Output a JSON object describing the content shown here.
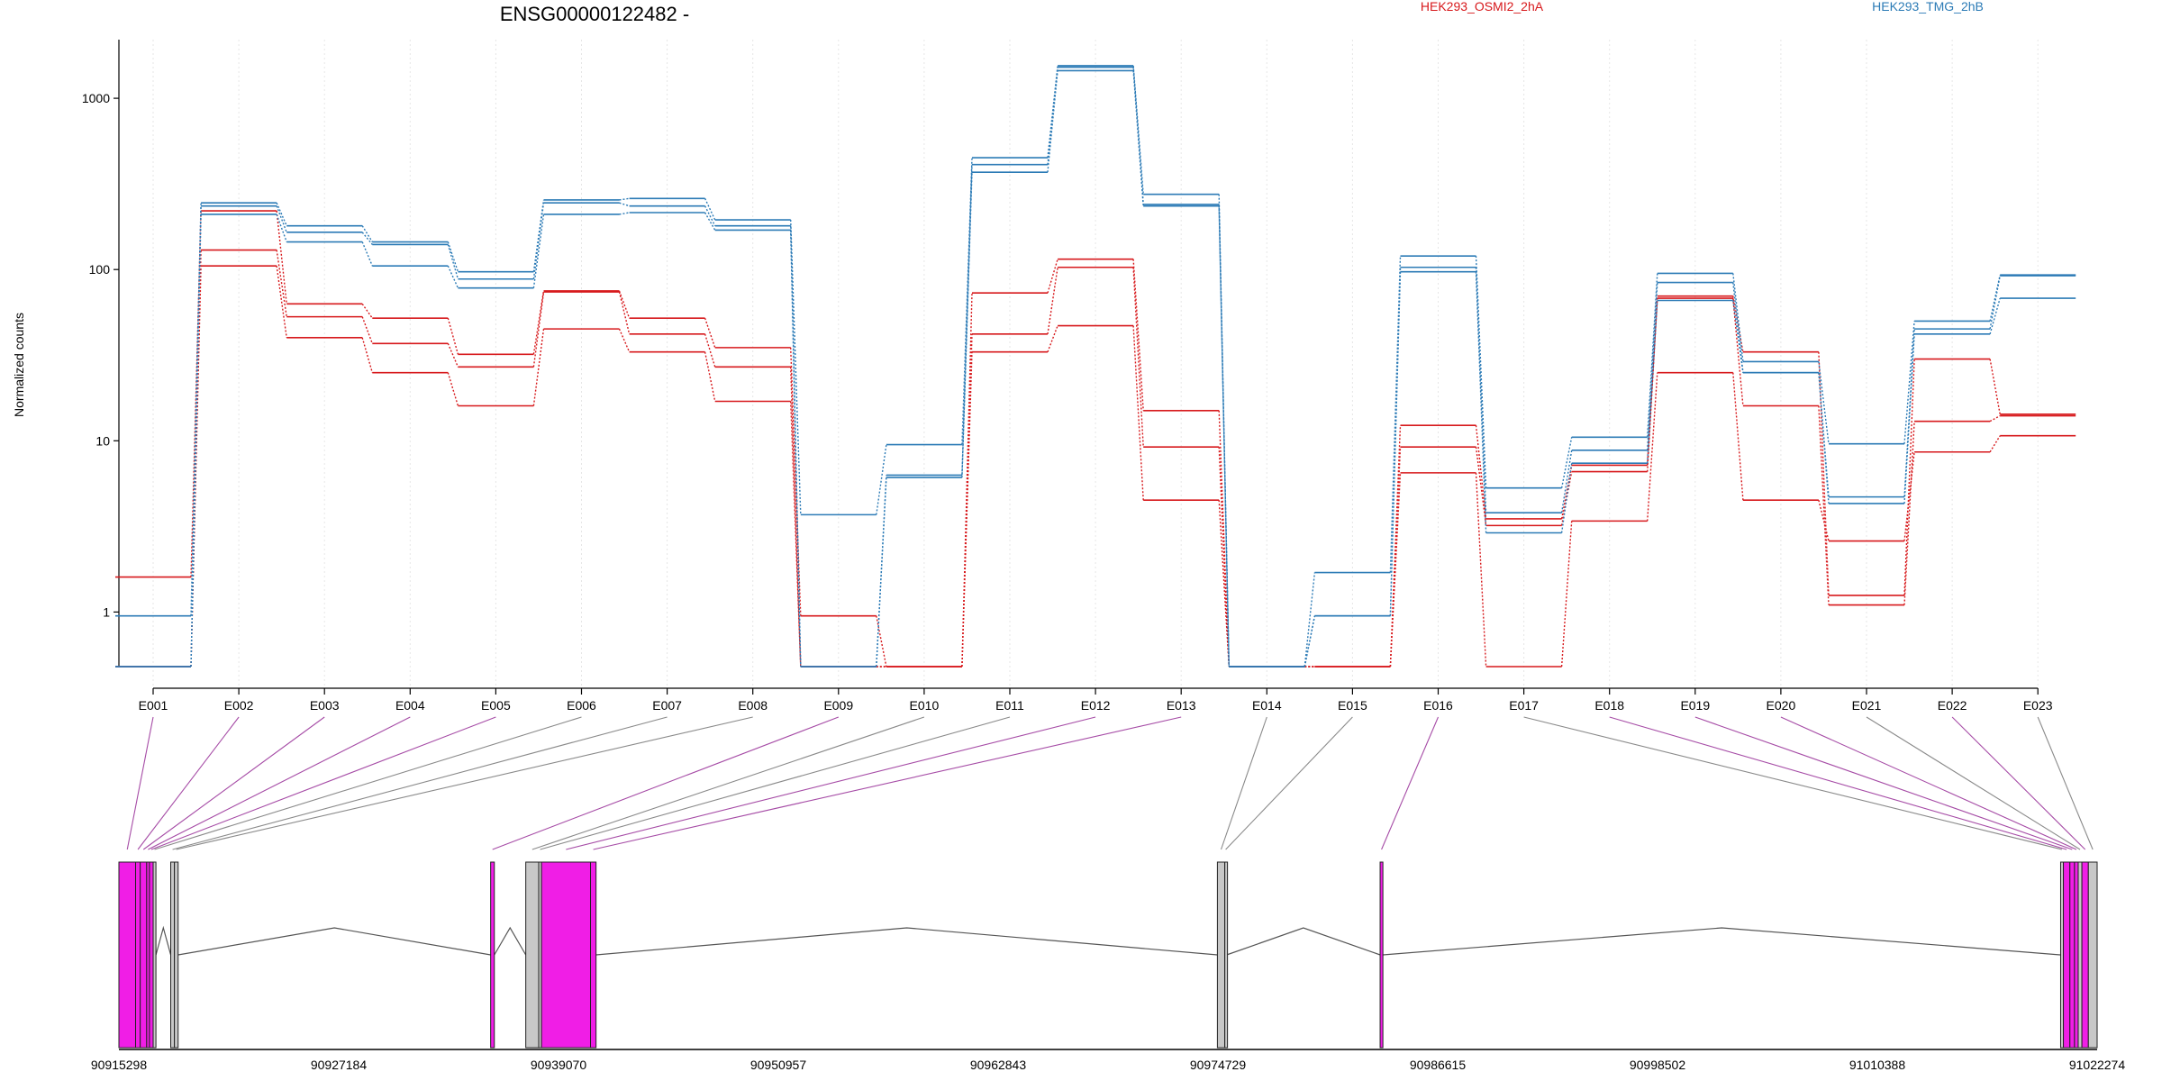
{
  "header": {
    "gene_label": "ENSG00000122482 -",
    "legend": [
      {
        "name": "HEK293_OSMI2_2hA",
        "color": "#d7191c"
      },
      {
        "name": "HEK293_TMG_2hB",
        "color": "#2c7bb6"
      }
    ]
  },
  "chart_data": {
    "type": "line",
    "scale": "log",
    "ylabel": "Normalized counts",
    "ylim": [
      0.48,
      2200
    ],
    "yticks": [
      1,
      10,
      100,
      1000
    ],
    "ytick_labels": [
      "1",
      "10",
      "100",
      "1000"
    ],
    "categories": [
      "E001",
      "E002",
      "E003",
      "E004",
      "E005",
      "E006",
      "E007",
      "E008",
      "E009",
      "E010",
      "E011",
      "E012",
      "E013",
      "E014",
      "E015",
      "E016",
      "E017",
      "E018",
      "E019",
      "E020",
      "E021",
      "E022",
      "E023"
    ],
    "grid": "vertical",
    "colors": {
      "red": "#d7191c",
      "blue": "#2c7bb6",
      "exon_used": "#f01ee6",
      "exon_other": "#c8c8c8",
      "connector_used": "#a64ca6",
      "connector_other": "#8a8a8a"
    },
    "series": [
      {
        "group": "HEK293_OSMI2_2hA",
        "color": "#d7191c",
        "values": [
          1.6,
          220,
          63,
          52,
          32,
          75,
          52,
          35,
          0.95,
          0.48,
          73,
          115,
          15,
          0.48,
          0.48,
          12.3,
          3.5,
          7.2,
          70,
          33,
          1.25,
          30,
          14.3
        ]
      },
      {
        "group": "HEK293_OSMI2_2hA",
        "color": "#d7191c",
        "values": [
          0.48,
          130,
          53,
          37,
          27,
          74,
          42,
          27,
          0.48,
          0.48,
          42,
          103,
          9.2,
          0.48,
          0.48,
          9.2,
          3.2,
          6.6,
          68,
          16,
          1.1,
          13,
          14
        ]
      },
      {
        "group": "HEK293_OSMI2_2hA",
        "color": "#d7191c",
        "values": [
          0.48,
          105,
          40,
          25,
          16,
          45,
          33,
          17,
          0.48,
          0.48,
          33,
          47,
          4.5,
          0.48,
          0.48,
          6.5,
          0.48,
          3.4,
          25,
          4.5,
          2.6,
          8.6,
          10.7
        ]
      },
      {
        "group": "HEK293_TMG_2hB",
        "color": "#2c7bb6",
        "values": [
          0.95,
          245,
          180,
          145,
          97,
          255,
          260,
          195,
          3.7,
          9.5,
          450,
          1550,
          275,
          0.48,
          1.7,
          120,
          5.3,
          10.5,
          95,
          29,
          9.6,
          50,
          93
        ]
      },
      {
        "group": "HEK293_TMG_2hB",
        "color": "#2c7bb6",
        "values": [
          0.48,
          235,
          165,
          140,
          88,
          245,
          235,
          180,
          0.48,
          6.3,
          410,
          1520,
          240,
          0.48,
          0.95,
          103,
          3.8,
          8.8,
          84,
          25,
          4.7,
          45,
          92
        ]
      },
      {
        "group": "HEK293_TMG_2hB",
        "color": "#2c7bb6",
        "values": [
          0.48,
          210,
          145,
          105,
          78,
          210,
          215,
          170,
          0.48,
          6.1,
          370,
          1450,
          235,
          0.48,
          0.95,
          97,
          2.9,
          7.4,
          66,
          25,
          4.3,
          42,
          68
        ]
      }
    ],
    "coordinate_labels": [
      "90915298",
      "90927184",
      "90939070",
      "90950957",
      "90962843",
      "90974729",
      "90986615",
      "90998502",
      "91010388",
      "91022274"
    ],
    "genome_range": [
      90915298,
      91022274
    ],
    "exons": [
      {
        "id": "E001",
        "start": 90915298,
        "end": 90916200,
        "used": true
      },
      {
        "id": "E002",
        "start": 90916200,
        "end": 90916450,
        "used": true
      },
      {
        "id": "E003",
        "start": 90916450,
        "end": 90916800,
        "used": true
      },
      {
        "id": "E004",
        "start": 90916800,
        "end": 90916950,
        "used": true
      },
      {
        "id": "E005",
        "start": 90916950,
        "end": 90917150,
        "used": true
      },
      {
        "id": "E006",
        "start": 90917150,
        "end": 90917300,
        "used": false
      },
      {
        "id": "E007",
        "start": 90918100,
        "end": 90918300,
        "used": false
      },
      {
        "id": "E008",
        "start": 90918300,
        "end": 90918500,
        "used": false
      },
      {
        "id": "E009",
        "start": 90935400,
        "end": 90935600,
        "used": true
      },
      {
        "id": "E010",
        "start": 90937300,
        "end": 90938000,
        "used": false
      },
      {
        "id": "E011",
        "start": 90938000,
        "end": 90938150,
        "used": false
      },
      {
        "id": "E012",
        "start": 90938150,
        "end": 90940800,
        "used": true
      },
      {
        "id": "E013",
        "start": 90940800,
        "end": 90941100,
        "used": true
      },
      {
        "id": "E014",
        "start": 90974700,
        "end": 90975100,
        "used": false
      },
      {
        "id": "E015",
        "start": 90975100,
        "end": 90975200,
        "used": false
      },
      {
        "id": "E016",
        "start": 90983500,
        "end": 90983650,
        "used": true
      },
      {
        "id": "E017",
        "start": 91020300,
        "end": 91020450,
        "used": false
      },
      {
        "id": "E018",
        "start": 91020450,
        "end": 91020800,
        "used": true
      },
      {
        "id": "E019",
        "start": 91020800,
        "end": 91021050,
        "used": true
      },
      {
        "id": "E020",
        "start": 91021050,
        "end": 91021250,
        "used": true
      },
      {
        "id": "E021",
        "start": 91021250,
        "end": 91021450,
        "used": false
      },
      {
        "id": "E022",
        "start": 91021450,
        "end": 91021800,
        "used": true
      },
      {
        "id": "E023",
        "start": 91021800,
        "end": 91022274,
        "used": false
      }
    ]
  }
}
